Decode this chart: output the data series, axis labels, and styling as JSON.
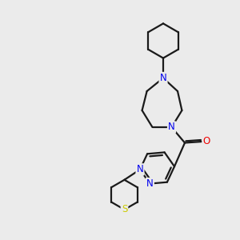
{
  "bg_color": "#ebebeb",
  "bond_color": "#1a1a1a",
  "N_color": "#0000ee",
  "O_color": "#ee0000",
  "S_color": "#cccc00",
  "line_width": 1.6,
  "font_size": 8.5,
  "figsize": [
    3.0,
    3.0
  ],
  "dpi": 100,
  "xlim": [
    0,
    10
  ],
  "ylim": [
    0,
    10
  ]
}
